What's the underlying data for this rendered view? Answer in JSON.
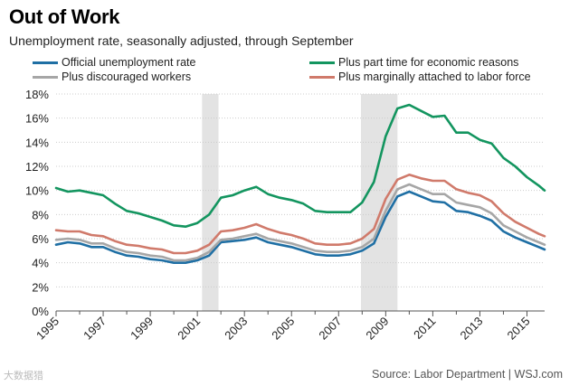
{
  "header": {
    "title": "Out of Work",
    "subtitle": "Unemployment rate, seasonally adjusted, through September"
  },
  "footer": {
    "source": "Source: Labor Department  |  WSJ.com",
    "watermark": "大数据猎"
  },
  "colors": {
    "official": "#1f6fa4",
    "part_time": "#13955f",
    "discouraged": "#a6a6a6",
    "marginal": "#d07a6b",
    "recession": "#e3e3e3",
    "grid": "#cccccc"
  },
  "chart_data": {
    "type": "line",
    "title": "Out of Work",
    "subtitle": "Unemployment rate, seasonally adjusted, through September",
    "xlabel": "",
    "ylabel": "",
    "xlim": [
      1995,
      2015.75
    ],
    "ylim": [
      0,
      18
    ],
    "yticks": [
      0,
      2,
      4,
      6,
      8,
      10,
      12,
      14,
      16,
      18
    ],
    "ytick_labels": [
      "0%",
      "2%",
      "4%",
      "6%",
      "8%",
      "10%",
      "12%",
      "14%",
      "16%",
      "18%"
    ],
    "xticks": [
      1995,
      1997,
      1999,
      2001,
      2003,
      2005,
      2007,
      2009,
      2011,
      2013,
      2015
    ],
    "xtick_labels": [
      "1995",
      "1997",
      "1999",
      "2001",
      "2003",
      "2005",
      "2007",
      "2009",
      "2011",
      "2013",
      "2015"
    ],
    "recessions": [
      [
        2001.2,
        2001.9
      ],
      [
        2007.95,
        2009.5
      ]
    ],
    "legend": "top",
    "series": [
      {
        "key": "official",
        "name": "Official unemployment rate",
        "x": [
          1995,
          1995.5,
          1996,
          1996.5,
          1997,
          1997.5,
          1998,
          1998.5,
          1999,
          1999.5,
          2000,
          2000.5,
          2001,
          2001.5,
          2002,
          2002.5,
          2003,
          2003.5,
          2004,
          2004.5,
          2005,
          2005.5,
          2006,
          2006.5,
          2007,
          2007.5,
          2008,
          2008.5,
          2009,
          2009.5,
          2010,
          2010.5,
          2011,
          2011.5,
          2012,
          2012.5,
          2013,
          2013.5,
          2014,
          2014.5,
          2015,
          2015.5,
          2015.75
        ],
        "values": [
          5.5,
          5.7,
          5.6,
          5.3,
          5.3,
          4.9,
          4.6,
          4.5,
          4.3,
          4.2,
          4.0,
          4.0,
          4.2,
          4.6,
          5.7,
          5.8,
          5.9,
          6.1,
          5.7,
          5.5,
          5.3,
          5.0,
          4.7,
          4.6,
          4.6,
          4.7,
          5.0,
          5.6,
          7.8,
          9.5,
          9.9,
          9.5,
          9.1,
          9.0,
          8.3,
          8.2,
          7.9,
          7.5,
          6.6,
          6.1,
          5.7,
          5.3,
          5.1
        ]
      },
      {
        "key": "discouraged",
        "name": "Plus discouraged workers",
        "x": [
          1995,
          1995.5,
          1996,
          1996.5,
          1997,
          1997.5,
          1998,
          1998.5,
          1999,
          1999.5,
          2000,
          2000.5,
          2001,
          2001.5,
          2002,
          2002.5,
          2003,
          2003.5,
          2004,
          2004.5,
          2005,
          2005.5,
          2006,
          2006.5,
          2007,
          2007.5,
          2008,
          2008.5,
          2009,
          2009.5,
          2010,
          2010.5,
          2011,
          2011.5,
          2012,
          2012.5,
          2013,
          2013.5,
          2014,
          2014.5,
          2015,
          2015.5,
          2015.75
        ],
        "values": [
          5.9,
          6.0,
          5.9,
          5.6,
          5.6,
          5.2,
          4.9,
          4.8,
          4.6,
          4.5,
          4.2,
          4.2,
          4.4,
          4.9,
          5.9,
          6.0,
          6.2,
          6.4,
          6.0,
          5.8,
          5.6,
          5.3,
          5.0,
          4.9,
          4.9,
          5.0,
          5.3,
          6.0,
          8.3,
          10.1,
          10.5,
          10.1,
          9.7,
          9.7,
          9.0,
          8.8,
          8.6,
          8.1,
          7.1,
          6.6,
          6.1,
          5.7,
          5.5
        ]
      },
      {
        "key": "marginal",
        "name": "Plus marginally attached to labor force",
        "x": [
          1995,
          1995.5,
          1996,
          1996.5,
          1997,
          1997.5,
          1998,
          1998.5,
          1999,
          1999.5,
          2000,
          2000.5,
          2001,
          2001.5,
          2002,
          2002.5,
          2003,
          2003.5,
          2004,
          2004.5,
          2005,
          2005.5,
          2006,
          2006.5,
          2007,
          2007.5,
          2008,
          2008.5,
          2009,
          2009.5,
          2010,
          2010.5,
          2011,
          2011.5,
          2012,
          2012.5,
          2013,
          2013.5,
          2014,
          2014.5,
          2015,
          2015.5,
          2015.75
        ],
        "values": [
          6.7,
          6.6,
          6.6,
          6.3,
          6.2,
          5.8,
          5.5,
          5.4,
          5.2,
          5.1,
          4.8,
          4.8,
          5.0,
          5.5,
          6.6,
          6.7,
          6.9,
          7.2,
          6.8,
          6.5,
          6.3,
          6.0,
          5.6,
          5.5,
          5.5,
          5.6,
          6.0,
          6.8,
          9.3,
          10.9,
          11.3,
          11.0,
          10.8,
          10.8,
          10.1,
          9.8,
          9.6,
          9.1,
          8.1,
          7.4,
          6.9,
          6.4,
          6.2
        ]
      },
      {
        "key": "part_time",
        "name": "Plus part time for economic reasons",
        "x": [
          1995,
          1995.5,
          1996,
          1996.5,
          1997,
          1997.5,
          1998,
          1998.5,
          1999,
          1999.5,
          2000,
          2000.5,
          2001,
          2001.5,
          2002,
          2002.5,
          2003,
          2003.5,
          2004,
          2004.5,
          2005,
          2005.5,
          2006,
          2006.5,
          2007,
          2007.5,
          2008,
          2008.5,
          2009,
          2009.5,
          2010,
          2010.5,
          2011,
          2011.5,
          2012,
          2012.5,
          2013,
          2013.5,
          2014,
          2014.5,
          2015,
          2015.5,
          2015.75
        ],
        "values": [
          10.2,
          9.9,
          10.0,
          9.8,
          9.6,
          8.9,
          8.3,
          8.1,
          7.8,
          7.5,
          7.1,
          7.0,
          7.3,
          8.0,
          9.4,
          9.6,
          10.0,
          10.3,
          9.7,
          9.4,
          9.2,
          8.9,
          8.3,
          8.2,
          8.2,
          8.2,
          9.0,
          10.7,
          14.5,
          16.8,
          17.1,
          16.6,
          16.1,
          16.2,
          14.8,
          14.8,
          14.2,
          13.9,
          12.7,
          12.0,
          11.1,
          10.4,
          10.0
        ]
      }
    ]
  }
}
